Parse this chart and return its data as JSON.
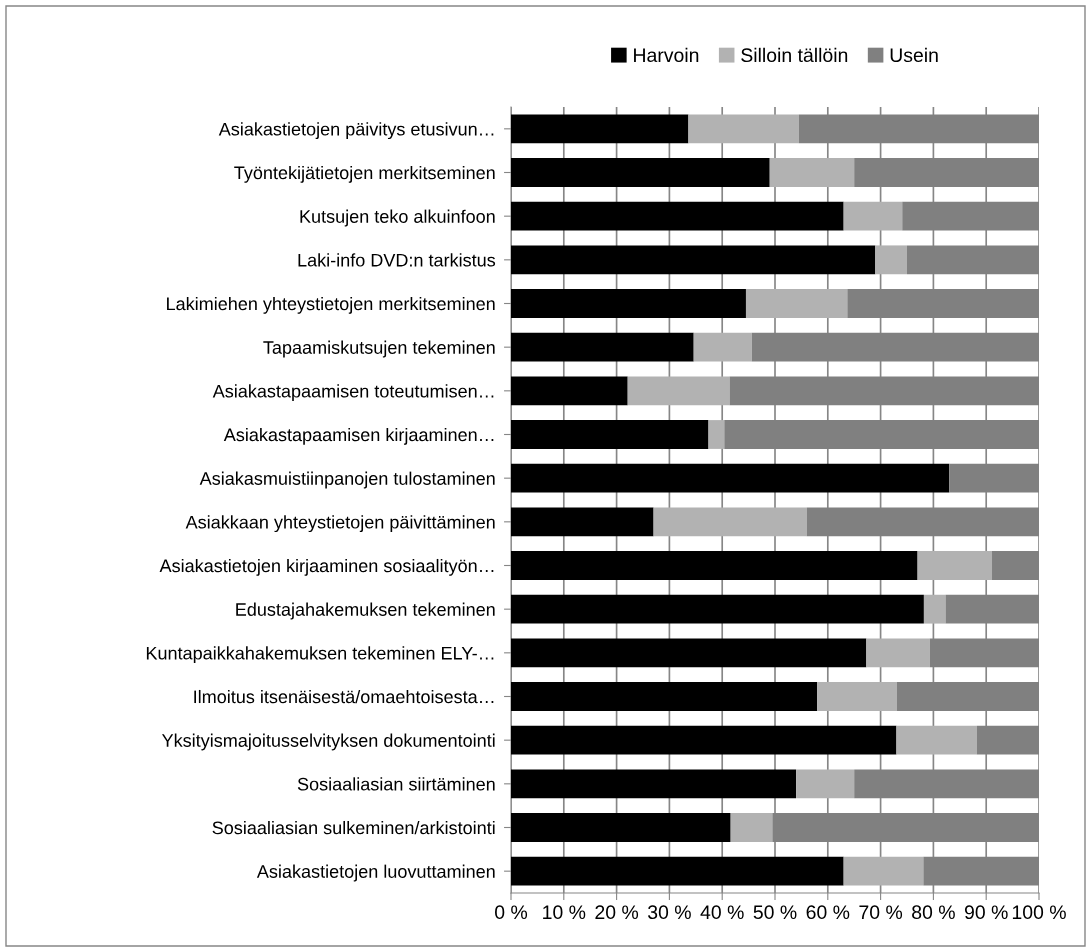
{
  "chart_data": {
    "type": "bar",
    "orientation": "horizontal",
    "stacked": true,
    "categories": [
      "Asiakastietojen päivitys etusivun…",
      "Työntekijätietojen merkitseminen",
      "Kutsujen teko alkuinfoon",
      "Laki-info DVD:n tarkistus",
      "Lakimiehen yhteystietojen merkitseminen",
      "Tapaamiskutsujen tekeminen",
      "Asiakastapaamisen toteutumisen…",
      "Asiakastapaamisen kirjaaminen…",
      "Asiakasmuistiinpanojen tulostaminen",
      "Asiakkaan yhteystietojen päivittäminen",
      "Asiakastietojen kirjaaminen sosiaalityön…",
      "Edustajahakemuksen tekeminen",
      "Kuntapaikkahakemuksen tekeminen ELY-…",
      "Ilmoitus itsenäisestä/omaehtoisesta…",
      "Yksityismajoitusselvityksen dokumentointi",
      "Sosiaaliasian siirtäminen",
      "Sosiaaliasian sulkeminen/arkistointi",
      "Asiakastietojen luovuttaminen"
    ],
    "series": [
      {
        "name": "Harvoin",
        "color": "#000000",
        "values": [
          33.6,
          49.0,
          63.0,
          69.0,
          44.5,
          34.6,
          22.1,
          37.4,
          83.0,
          27.0,
          77.0,
          78.2,
          67.3,
          58.0,
          73.0,
          54.0,
          41.6,
          63.0
        ]
      },
      {
        "name": "Silloin tällöin",
        "color": "#b2b2b2",
        "values": [
          20.9,
          16.0,
          11.1,
          6.0,
          19.2,
          11.0,
          19.3,
          3.0,
          0,
          29.0,
          14.1,
          4.1,
          12.0,
          15.1,
          15.2,
          11.0,
          7.9,
          15.1
        ]
      },
      {
        "name": "Usein",
        "color": "#808080",
        "values": [
          45.5,
          35.0,
          25.9,
          25.0,
          36.3,
          54.4,
          58.6,
          59.6,
          17.0,
          44.0,
          8.9,
          17.7,
          20.7,
          26.9,
          11.8,
          35.0,
          50.5,
          21.9
        ]
      }
    ],
    "xlim": [
      0,
      100
    ],
    "xticks": [
      {
        "value": 0,
        "label": "0 %"
      },
      {
        "value": 10,
        "label": "10 %"
      },
      {
        "value": 20,
        "label": "20 %"
      },
      {
        "value": 30,
        "label": "30 %"
      },
      {
        "value": 40,
        "label": "40 %"
      },
      {
        "value": 50,
        "label": "50 %"
      },
      {
        "value": 60,
        "label": "60 %"
      },
      {
        "value": 70,
        "label": "70 %"
      },
      {
        "value": 80,
        "label": "80 %"
      },
      {
        "value": 90,
        "label": "90 %"
      },
      {
        "value": 100,
        "label": "100 %"
      }
    ],
    "grid": "x",
    "legend": "top"
  }
}
